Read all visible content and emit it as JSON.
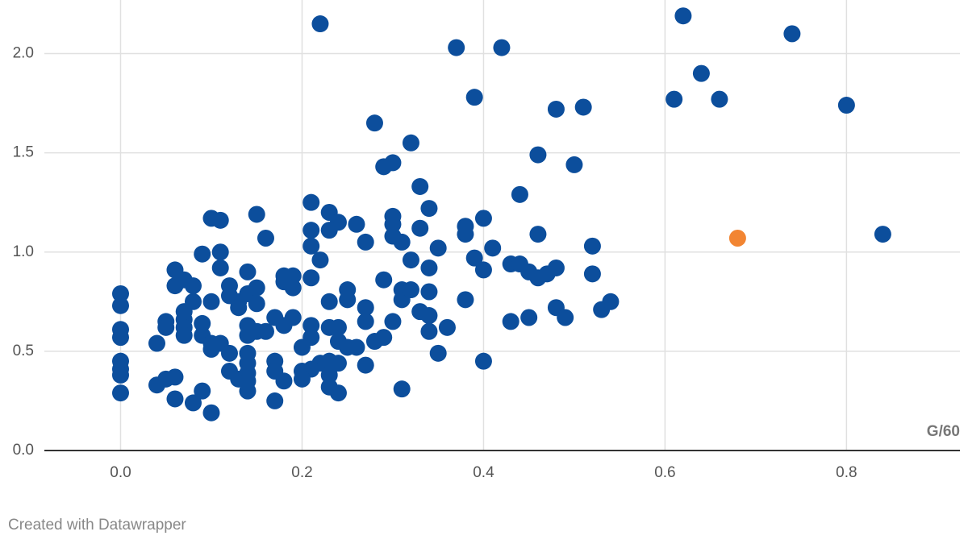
{
  "chart_data": {
    "type": "scatter",
    "x_label": "G/60",
    "footer": "Created with Datawrapper",
    "xlim": [
      -0.084,
      0.925
    ],
    "ylim": [
      0,
      2.27
    ],
    "xticks": [
      {
        "value": 0,
        "label": "0.0"
      },
      0.2,
      0.4,
      0.6,
      0.8
    ],
    "yticks": [
      {
        "value": 0,
        "label": "0.0"
      },
      0.5,
      {
        "value": 1,
        "label": "1.0"
      },
      1.5,
      {
        "value": 2,
        "label": "2.0"
      }
    ],
    "grid": true,
    "series": [
      {
        "color": "#0c4e9c",
        "x": [
          0.22,
          0.37,
          0.42,
          0.39,
          0.62,
          0.74,
          0.64,
          0.61,
          0.66,
          0.8,
          0.48,
          0.51,
          0.28,
          0.32,
          0.46,
          0.29,
          0.3,
          0.5,
          0.33,
          0.44,
          0.21,
          0.34,
          0.15,
          0.1,
          0.11,
          0.23,
          0.24,
          0.23,
          0.21,
          0.26,
          0.3,
          0.3,
          0.38,
          0.38,
          0.4,
          0.33,
          0.3,
          0.31,
          0.16,
          0.27,
          0.21,
          0.35,
          0.41,
          0.46,
          0.52,
          0.84,
          0.09,
          0.11,
          0.22,
          0.32,
          0.39,
          0.4,
          0.34,
          0.43,
          0.44,
          0.45,
          0.46,
          0.47,
          0.48,
          0.52,
          0.06,
          0.11,
          0.14,
          0.18,
          0.19,
          0.18,
          0.19,
          0.21,
          0.29,
          0.06,
          0.07,
          0.08,
          0.12,
          0.12,
          0.13,
          0.14,
          0.15,
          0.15,
          0.13,
          0.0,
          0.0,
          0.1,
          0.08,
          0.07,
          0.25,
          0.25,
          0.23,
          0.31,
          0.31,
          0.32,
          0.34,
          0.38,
          0.27,
          0.33,
          0.34,
          0.48,
          0.49,
          0.53,
          0.54,
          0.45,
          0.43,
          0.17,
          0.19,
          0.18,
          0.16,
          0.15,
          0.14,
          0.14,
          0.07,
          0.07,
          0.07,
          0.09,
          0.09,
          0.05,
          0.05,
          0.21,
          0.21,
          0.23,
          0.24,
          0.24,
          0.25,
          0.27,
          0.3,
          0.34,
          0.36,
          0.0,
          0.0,
          0.04,
          0.1,
          0.1,
          0.11,
          0.12,
          0.14,
          0.14,
          0.17,
          0.2,
          0.26,
          0.28,
          0.29,
          0.35,
          0.0,
          0.0,
          0.0,
          0.4,
          0.27,
          0.22,
          0.23,
          0.24,
          0.21,
          0.2,
          0.2,
          0.12,
          0.13,
          0.14,
          0.14,
          0.17,
          0.18,
          0.23,
          0.23,
          0.24,
          0.04,
          0.05,
          0.06,
          0.0,
          0.06,
          0.08,
          0.09,
          0.14,
          0.17,
          0.1,
          0.31
        ],
        "values": [
          2.15,
          2.03,
          2.03,
          1.78,
          2.19,
          2.1,
          1.9,
          1.77,
          1.77,
          1.74,
          1.72,
          1.73,
          1.65,
          1.55,
          1.49,
          1.43,
          1.45,
          1.44,
          1.33,
          1.29,
          1.25,
          1.22,
          1.19,
          1.17,
          1.16,
          1.2,
          1.15,
          1.11,
          1.11,
          1.14,
          1.18,
          1.14,
          1.13,
          1.09,
          1.17,
          1.12,
          1.08,
          1.05,
          1.07,
          1.05,
          1.03,
          1.02,
          1.02,
          1.09,
          1.03,
          1.09,
          0.99,
          1.0,
          0.96,
          0.96,
          0.97,
          0.91,
          0.92,
          0.94,
          0.94,
          0.9,
          0.87,
          0.89,
          0.92,
          0.89,
          0.91,
          0.92,
          0.9,
          0.88,
          0.88,
          0.85,
          0.82,
          0.87,
          0.86,
          0.83,
          0.86,
          0.83,
          0.83,
          0.78,
          0.75,
          0.79,
          0.82,
          0.74,
          0.72,
          0.79,
          0.73,
          0.75,
          0.75,
          0.7,
          0.81,
          0.76,
          0.75,
          0.81,
          0.76,
          0.81,
          0.8,
          0.76,
          0.72,
          0.7,
          0.68,
          0.72,
          0.67,
          0.71,
          0.75,
          0.67,
          0.65,
          0.67,
          0.67,
          0.63,
          0.6,
          0.6,
          0.63,
          0.58,
          0.66,
          0.62,
          0.58,
          0.64,
          0.58,
          0.65,
          0.62,
          0.63,
          0.57,
          0.62,
          0.62,
          0.55,
          0.52,
          0.65,
          0.65,
          0.6,
          0.62,
          0.61,
          0.57,
          0.54,
          0.54,
          0.51,
          0.54,
          0.49,
          0.49,
          0.44,
          0.45,
          0.52,
          0.52,
          0.55,
          0.57,
          0.49,
          0.45,
          0.41,
          0.38,
          0.45,
          0.43,
          0.44,
          0.45,
          0.44,
          0.41,
          0.4,
          0.36,
          0.4,
          0.36,
          0.39,
          0.35,
          0.4,
          0.35,
          0.38,
          0.32,
          0.29,
          0.33,
          0.36,
          0.37,
          0.29,
          0.26,
          0.24,
          0.3,
          0.3,
          0.25,
          0.19,
          0.31
        ]
      },
      {
        "color": "#f28532",
        "x": [
          0.68
        ],
        "values": [
          1.07
        ]
      }
    ]
  }
}
